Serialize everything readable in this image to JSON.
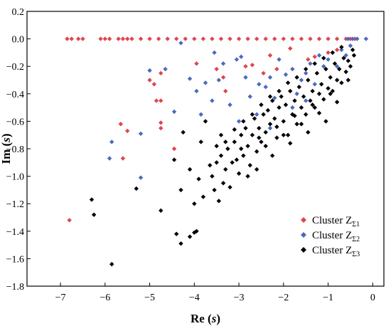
{
  "chart_data": {
    "type": "scatter",
    "xlabel_main": "Re",
    "xlabel_var": "s",
    "ylabel_main": "Im",
    "ylabel_var": "s",
    "xlim": [
      -7.75,
      0.25
    ],
    "ylim": [
      -1.8,
      0.2
    ],
    "xticks": [
      -7,
      -6,
      -5,
      -4,
      -3,
      -2,
      -1,
      0
    ],
    "yticks": [
      0.2,
      0.0,
      -0.2,
      -0.4,
      -0.6,
      -0.8,
      -1.0,
      -1.2,
      -1.4,
      -1.6,
      -1.8
    ],
    "legend_position": "bottom-right",
    "grid": false,
    "marker": "diamond",
    "series": [
      {
        "legend_prefix": "Cluster Z",
        "legend_sub": "Σ1",
        "color": "#e0454f",
        "points": [
          [
            -6.85,
            0
          ],
          [
            -6.75,
            0
          ],
          [
            -6.6,
            0
          ],
          [
            -6.5,
            0
          ],
          [
            -6.1,
            0
          ],
          [
            -6.0,
            0
          ],
          [
            -5.9,
            0
          ],
          [
            -5.7,
            0
          ],
          [
            -5.6,
            0
          ],
          [
            -5.5,
            0
          ],
          [
            -5.4,
            0
          ],
          [
            -5.2,
            0
          ],
          [
            -5.0,
            0
          ],
          [
            -4.8,
            0
          ],
          [
            -4.6,
            0
          ],
          [
            -4.4,
            0
          ],
          [
            -4.2,
            0
          ],
          [
            -4.0,
            0
          ],
          [
            -3.8,
            0
          ],
          [
            -3.6,
            0
          ],
          [
            -3.4,
            0
          ],
          [
            -3.2,
            0
          ],
          [
            -3.0,
            0
          ],
          [
            -2.8,
            0
          ],
          [
            -2.6,
            0
          ],
          [
            -2.4,
            0
          ],
          [
            -2.2,
            0
          ],
          [
            -2.0,
            0
          ],
          [
            -1.8,
            0
          ],
          [
            -1.6,
            0
          ],
          [
            -1.4,
            0
          ],
          [
            -1.2,
            0
          ],
          [
            -1.0,
            0
          ],
          [
            -0.8,
            0
          ],
          [
            -0.6,
            0
          ],
          [
            -0.5,
            0
          ],
          [
            -0.4,
            0
          ],
          [
            -6.8,
            -1.32
          ],
          [
            -5.65,
            -0.62
          ],
          [
            -5.5,
            -0.67
          ],
          [
            -5.6,
            -0.87
          ],
          [
            -5.0,
            -0.3
          ],
          [
            -4.9,
            -0.33
          ],
          [
            -4.75,
            -0.25
          ],
          [
            -4.85,
            -0.45
          ],
          [
            -4.75,
            -0.45
          ],
          [
            -4.75,
            -0.65
          ],
          [
            -4.75,
            -0.61
          ],
          [
            -4.45,
            -0.8
          ],
          [
            -3.95,
            -0.18
          ],
          [
            -3.5,
            -0.22
          ],
          [
            -3.35,
            -0.28
          ],
          [
            -3.3,
            -0.38
          ],
          [
            -2.85,
            -0.2
          ],
          [
            -2.7,
            -0.19
          ],
          [
            -2.45,
            -0.25
          ],
          [
            -2.15,
            -0.22
          ],
          [
            -2.3,
            -0.12
          ],
          [
            -1.85,
            -0.07
          ],
          [
            -1.45,
            -0.15
          ],
          [
            -1.3,
            -0.13
          ],
          [
            -1.0,
            -0.1
          ],
          [
            -0.8,
            -0.08
          ]
        ]
      },
      {
        "legend_prefix": "Cluster Z",
        "legend_sub": "Σ2",
        "color": "#4a6abf",
        "points": [
          [
            -0.55,
            0
          ],
          [
            -0.45,
            0
          ],
          [
            -0.35,
            0
          ],
          [
            -0.15,
            0
          ],
          [
            -5.9,
            -0.87
          ],
          [
            -5.85,
            -0.75
          ],
          [
            -5.2,
            -1.01
          ],
          [
            -5.0,
            -0.23
          ],
          [
            -5.2,
            -0.69
          ],
          [
            -4.65,
            -0.22
          ],
          [
            -4.45,
            -0.53
          ],
          [
            -4.3,
            -0.03
          ],
          [
            -4.1,
            -0.29
          ],
          [
            -3.95,
            -0.38
          ],
          [
            -3.85,
            -0.55
          ],
          [
            -3.75,
            -0.32
          ],
          [
            -3.6,
            -0.45
          ],
          [
            -3.55,
            -0.1
          ],
          [
            -3.45,
            -0.3
          ],
          [
            -3.35,
            -0.18
          ],
          [
            -3.2,
            -0.48
          ],
          [
            -3.05,
            -0.15
          ],
          [
            -2.95,
            -0.13
          ],
          [
            -2.85,
            -0.28
          ],
          [
            -2.75,
            -0.42
          ],
          [
            -2.55,
            -0.33
          ],
          [
            -2.4,
            -0.35
          ],
          [
            -2.3,
            -0.28
          ],
          [
            -2.2,
            -0.43
          ],
          [
            -2.1,
            -0.15
          ],
          [
            -1.95,
            -0.26
          ],
          [
            -1.8,
            -0.22
          ],
          [
            -1.7,
            -0.4
          ],
          [
            -1.6,
            -0.3
          ],
          [
            -1.5,
            -0.25
          ],
          [
            -1.4,
            -0.18
          ],
          [
            -1.3,
            -0.33
          ],
          [
            -1.2,
            -0.12
          ],
          [
            -1.1,
            -0.2
          ],
          [
            -1.0,
            -0.15
          ],
          [
            -0.9,
            -0.1
          ],
          [
            -0.8,
            -0.2
          ],
          [
            -0.7,
            -0.08
          ],
          [
            -0.6,
            -0.12
          ],
          [
            -0.5,
            -0.05
          ],
          [
            -2.3,
            -0.65
          ],
          [
            -1.8,
            -0.5
          ],
          [
            -1.5,
            -0.45
          ],
          [
            -3.0,
            -0.6
          ],
          [
            -2.6,
            -0.55
          ]
        ]
      },
      {
        "legend_prefix": "Cluster Z",
        "legend_sub": "Σ3",
        "color": "#000000",
        "points": [
          [
            -5.85,
            -1.64
          ],
          [
            -6.3,
            -1.17
          ],
          [
            -6.25,
            -1.28
          ],
          [
            -5.3,
            -1.09
          ],
          [
            -4.75,
            -1.25
          ],
          [
            -4.4,
            -1.42
          ],
          [
            -4.3,
            -1.49
          ],
          [
            -4.1,
            -1.44
          ],
          [
            -4.0,
            -1.41
          ],
          [
            -3.95,
            -1.4
          ],
          [
            -4.25,
            -0.68
          ],
          [
            -4.1,
            -0.95
          ],
          [
            -4.45,
            -0.88
          ],
          [
            -4.3,
            -1.1
          ],
          [
            -4.0,
            -1.2
          ],
          [
            -3.9,
            -1.02
          ],
          [
            -3.85,
            -0.75
          ],
          [
            -3.8,
            -1.15
          ],
          [
            -3.75,
            -0.6
          ],
          [
            -3.6,
            -1.0
          ],
          [
            -3.55,
            -1.1
          ],
          [
            -3.5,
            -0.9
          ],
          [
            -3.45,
            -1.18
          ],
          [
            -3.4,
            -0.85
          ],
          [
            -3.4,
            -0.7
          ],
          [
            -3.35,
            -1.05
          ],
          [
            -3.3,
            -0.95
          ],
          [
            -3.25,
            -0.8
          ],
          [
            -3.2,
            -1.08
          ],
          [
            -3.15,
            -0.9
          ],
          [
            -3.1,
            -0.75
          ],
          [
            -3.05,
            -0.88
          ],
          [
            -3.0,
            -0.98
          ],
          [
            -2.95,
            -0.7
          ],
          [
            -2.9,
            -0.85
          ],
          [
            -2.85,
            -0.65
          ],
          [
            -2.8,
            -0.78
          ],
          [
            -2.75,
            -0.92
          ],
          [
            -2.7,
            -0.7
          ],
          [
            -2.65,
            -0.58
          ],
          [
            -2.6,
            -0.82
          ],
          [
            -2.55,
            -0.65
          ],
          [
            -2.5,
            -0.75
          ],
          [
            -2.45,
            -0.55
          ],
          [
            -2.4,
            -0.68
          ],
          [
            -2.35,
            -0.52
          ],
          [
            -2.3,
            -0.62
          ],
          [
            -2.25,
            -0.45
          ],
          [
            -2.2,
            -0.58
          ],
          [
            -2.15,
            -0.72
          ],
          [
            -2.1,
            -0.5
          ],
          [
            -2.05,
            -0.42
          ],
          [
            -2.0,
            -0.6
          ],
          [
            -1.95,
            -0.48
          ],
          [
            -1.9,
            -0.7
          ],
          [
            -1.85,
            -0.38
          ],
          [
            -1.8,
            -0.55
          ],
          [
            -1.75,
            -0.45
          ],
          [
            -1.7,
            -0.62
          ],
          [
            -1.65,
            -0.35
          ],
          [
            -1.6,
            -0.5
          ],
          [
            -1.55,
            -0.42
          ],
          [
            -1.5,
            -0.55
          ],
          [
            -1.45,
            -0.3
          ],
          [
            -1.4,
            -0.45
          ],
          [
            -1.35,
            -0.38
          ],
          [
            -1.3,
            -0.5
          ],
          [
            -1.25,
            -0.25
          ],
          [
            -1.2,
            -0.4
          ],
          [
            -1.15,
            -0.33
          ],
          [
            -1.1,
            -0.44
          ],
          [
            -1.05,
            -0.22
          ],
          [
            -1.0,
            -0.36
          ],
          [
            -0.95,
            -0.28
          ],
          [
            -0.9,
            -0.38
          ],
          [
            -0.85,
            -0.18
          ],
          [
            -0.8,
            -0.3
          ],
          [
            -0.75,
            -0.22
          ],
          [
            -0.7,
            -0.32
          ],
          [
            -0.65,
            -0.14
          ],
          [
            -0.6,
            -0.24
          ],
          [
            -0.55,
            -0.16
          ],
          [
            -0.5,
            -0.2
          ],
          [
            -0.45,
            -0.08
          ],
          [
            -0.42,
            -0.12
          ],
          [
            -3.1,
            -0.66
          ],
          [
            -2.9,
            -0.6
          ],
          [
            -2.7,
            -0.55
          ],
          [
            -2.5,
            -0.48
          ],
          [
            -2.3,
            -0.42
          ],
          [
            -2.1,
            -0.38
          ],
          [
            -1.9,
            -0.32
          ],
          [
            -1.7,
            -0.28
          ],
          [
            -1.5,
            -0.22
          ],
          [
            -1.3,
            -0.18
          ],
          [
            -1.1,
            -0.14
          ],
          [
            -0.9,
            -0.1
          ],
          [
            -0.7,
            -0.06
          ],
          [
            -3.3,
            -0.75
          ],
          [
            -2.95,
            -0.8
          ],
          [
            -2.55,
            -0.72
          ],
          [
            -2.15,
            -0.64
          ],
          [
            -1.75,
            -0.56
          ],
          [
            -1.35,
            -0.48
          ],
          [
            -0.95,
            -0.4
          ],
          [
            -0.55,
            -0.3
          ],
          [
            -2.4,
            -0.78
          ],
          [
            -2.0,
            -0.7
          ],
          [
            -1.6,
            -0.62
          ],
          [
            -1.2,
            -0.54
          ],
          [
            -0.8,
            -0.46
          ],
          [
            -2.8,
            -1.0
          ],
          [
            -2.6,
            -0.95
          ],
          [
            -3.5,
            -0.78
          ],
          [
            -3.65,
            -0.92
          ],
          [
            -2.25,
            -0.85
          ],
          [
            -1.85,
            -0.76
          ],
          [
            -1.45,
            -0.68
          ],
          [
            -1.05,
            -0.6
          ]
        ]
      }
    ]
  }
}
